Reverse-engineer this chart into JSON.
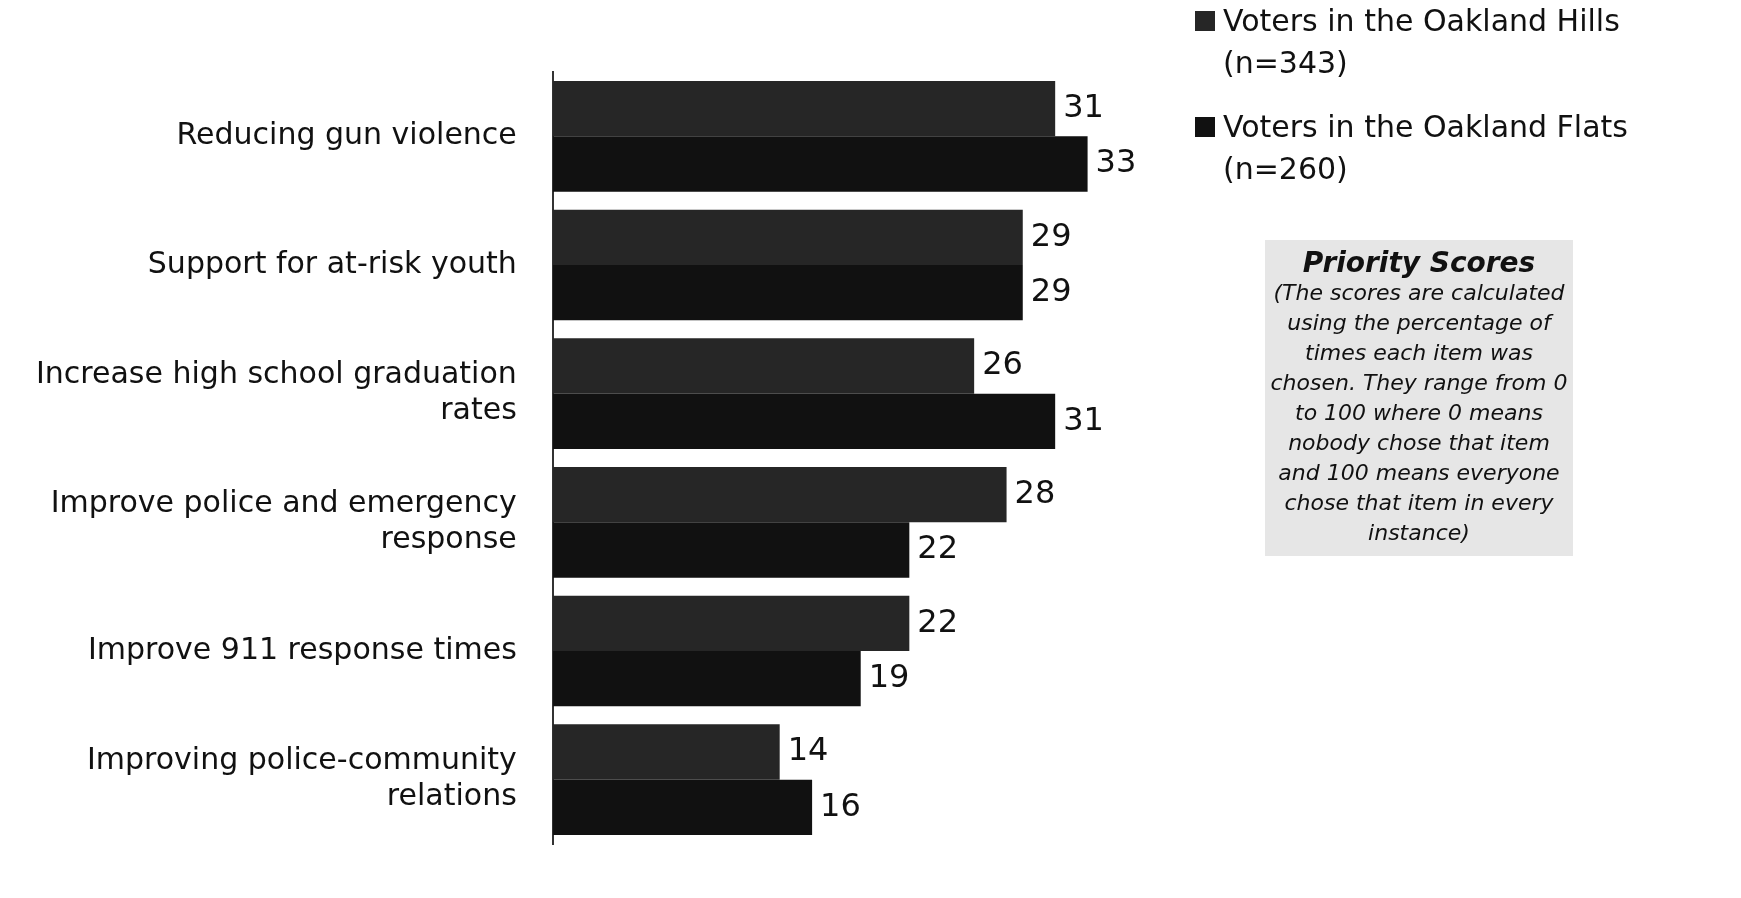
{
  "chart_data": {
    "type": "bar",
    "orientation": "horizontal",
    "categories": [
      "Reducing gun violence",
      "Support for at-risk youth",
      "Increase high school graduation rates",
      "Improve police and emergency response",
      "Improve 911 response times",
      "Improving police-community relations"
    ],
    "series": [
      {
        "name": "Voters in the Oakland Hills (n=343)",
        "color": "#262626",
        "values": [
          31,
          29,
          26,
          28,
          22,
          14
        ]
      },
      {
        "name": "Voters in the Oakland Flats (n=260)",
        "color": "#111111",
        "values": [
          33,
          29,
          31,
          22,
          19,
          16
        ]
      }
    ],
    "tick_labels": "y",
    "data_labels": true,
    "legend": "top right",
    "annotations": [
      "Priority Scores",
      "(The scores are calculated using the percentage of times each item was chosen. They range from 0 to 100 where 0 means nobody chose that item and 100 means everyone chose that item in every instance)"
    ]
  }
}
